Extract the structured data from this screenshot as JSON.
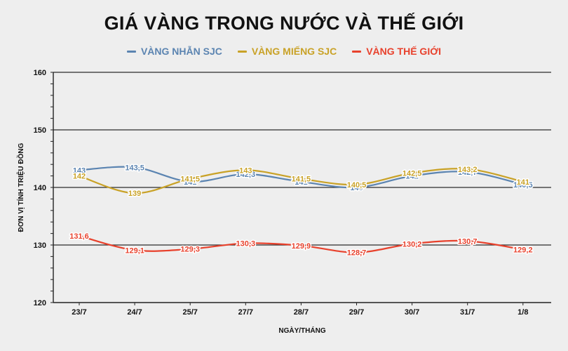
{
  "chart_data": {
    "type": "line",
    "title": "GIÁ VÀNG TRONG NƯỚC VÀ THẾ GIỚI",
    "xlabel": "NGÀY/THÁNG",
    "ylabel": "ĐƠN VỊ TÍNH TRIỆU ĐỒNG",
    "categories": [
      "23/7",
      "24/7",
      "25/7",
      "27/7",
      "28/7",
      "29/7",
      "30/7",
      "31/7",
      "1/8"
    ],
    "ylim": [
      120,
      160
    ],
    "yticks": [
      "120",
      "130",
      "140",
      "150",
      "160"
    ],
    "grid": true,
    "legend_position": "top-center",
    "series": [
      {
        "name": "VÀNG NHẪN SJC",
        "color": "#5b84b1",
        "values": [
          143,
          143.5,
          141,
          142.3,
          141,
          140,
          142,
          142.7,
          140.5
        ],
        "labels": [
          "143",
          "143,5",
          "141",
          "142,3",
          "141",
          "140",
          "142",
          "142,7",
          "140,5"
        ]
      },
      {
        "name": "VÀNG MIẾNG SJC",
        "color": "#c9a227",
        "values": [
          142,
          139,
          141.5,
          143,
          141.5,
          140.5,
          142.5,
          143.2,
          141
        ],
        "labels": [
          "142",
          "139",
          "141,5",
          "143",
          "141,5",
          "140,5",
          "142,5",
          "143,2",
          "141"
        ]
      },
      {
        "name": "VÀNG THẾ GIỚI",
        "color": "#e8412c",
        "values": [
          131.6,
          129.1,
          129.3,
          130.3,
          129.9,
          128.7,
          130.2,
          130.7,
          129.2
        ],
        "labels": [
          "131,6",
          "129,1",
          "129,3",
          "130,3",
          "129,9",
          "128,7",
          "130,2",
          "130,7",
          "129,2"
        ]
      }
    ]
  }
}
